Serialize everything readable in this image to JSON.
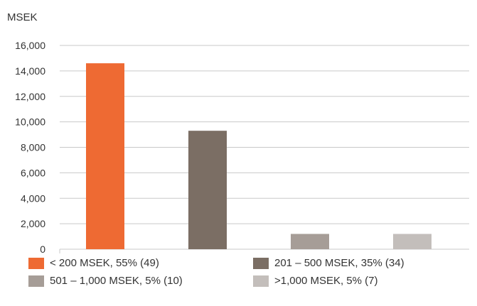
{
  "chart_data": {
    "type": "bar",
    "ylabel": "MSEK",
    "categories": [
      "< 200 MSEK, 55% (49)",
      "201 – 500 MSEK, 35% (34)",
      "501 – 1,000 MSEK, 5% (10)",
      ">1,000 MSEK, 5% (7)"
    ],
    "values": [
      14600,
      9300,
      1200,
      1200
    ],
    "colors": [
      "#ee6a33",
      "#7b6e64",
      "#a69d97",
      "#c3bebb"
    ],
    "ylim": [
      0,
      16000
    ],
    "yticks": [
      "0",
      "2,000",
      "4,000",
      "6,000",
      "8,000",
      "10,000",
      "12,000",
      "14,000",
      "16,000"
    ],
    "ytick_values": [
      0,
      2000,
      4000,
      6000,
      8000,
      10000,
      12000,
      14000,
      16000
    ],
    "grid": true,
    "legend_position": "bottom",
    "gridline_color": "#c9c9c9"
  }
}
